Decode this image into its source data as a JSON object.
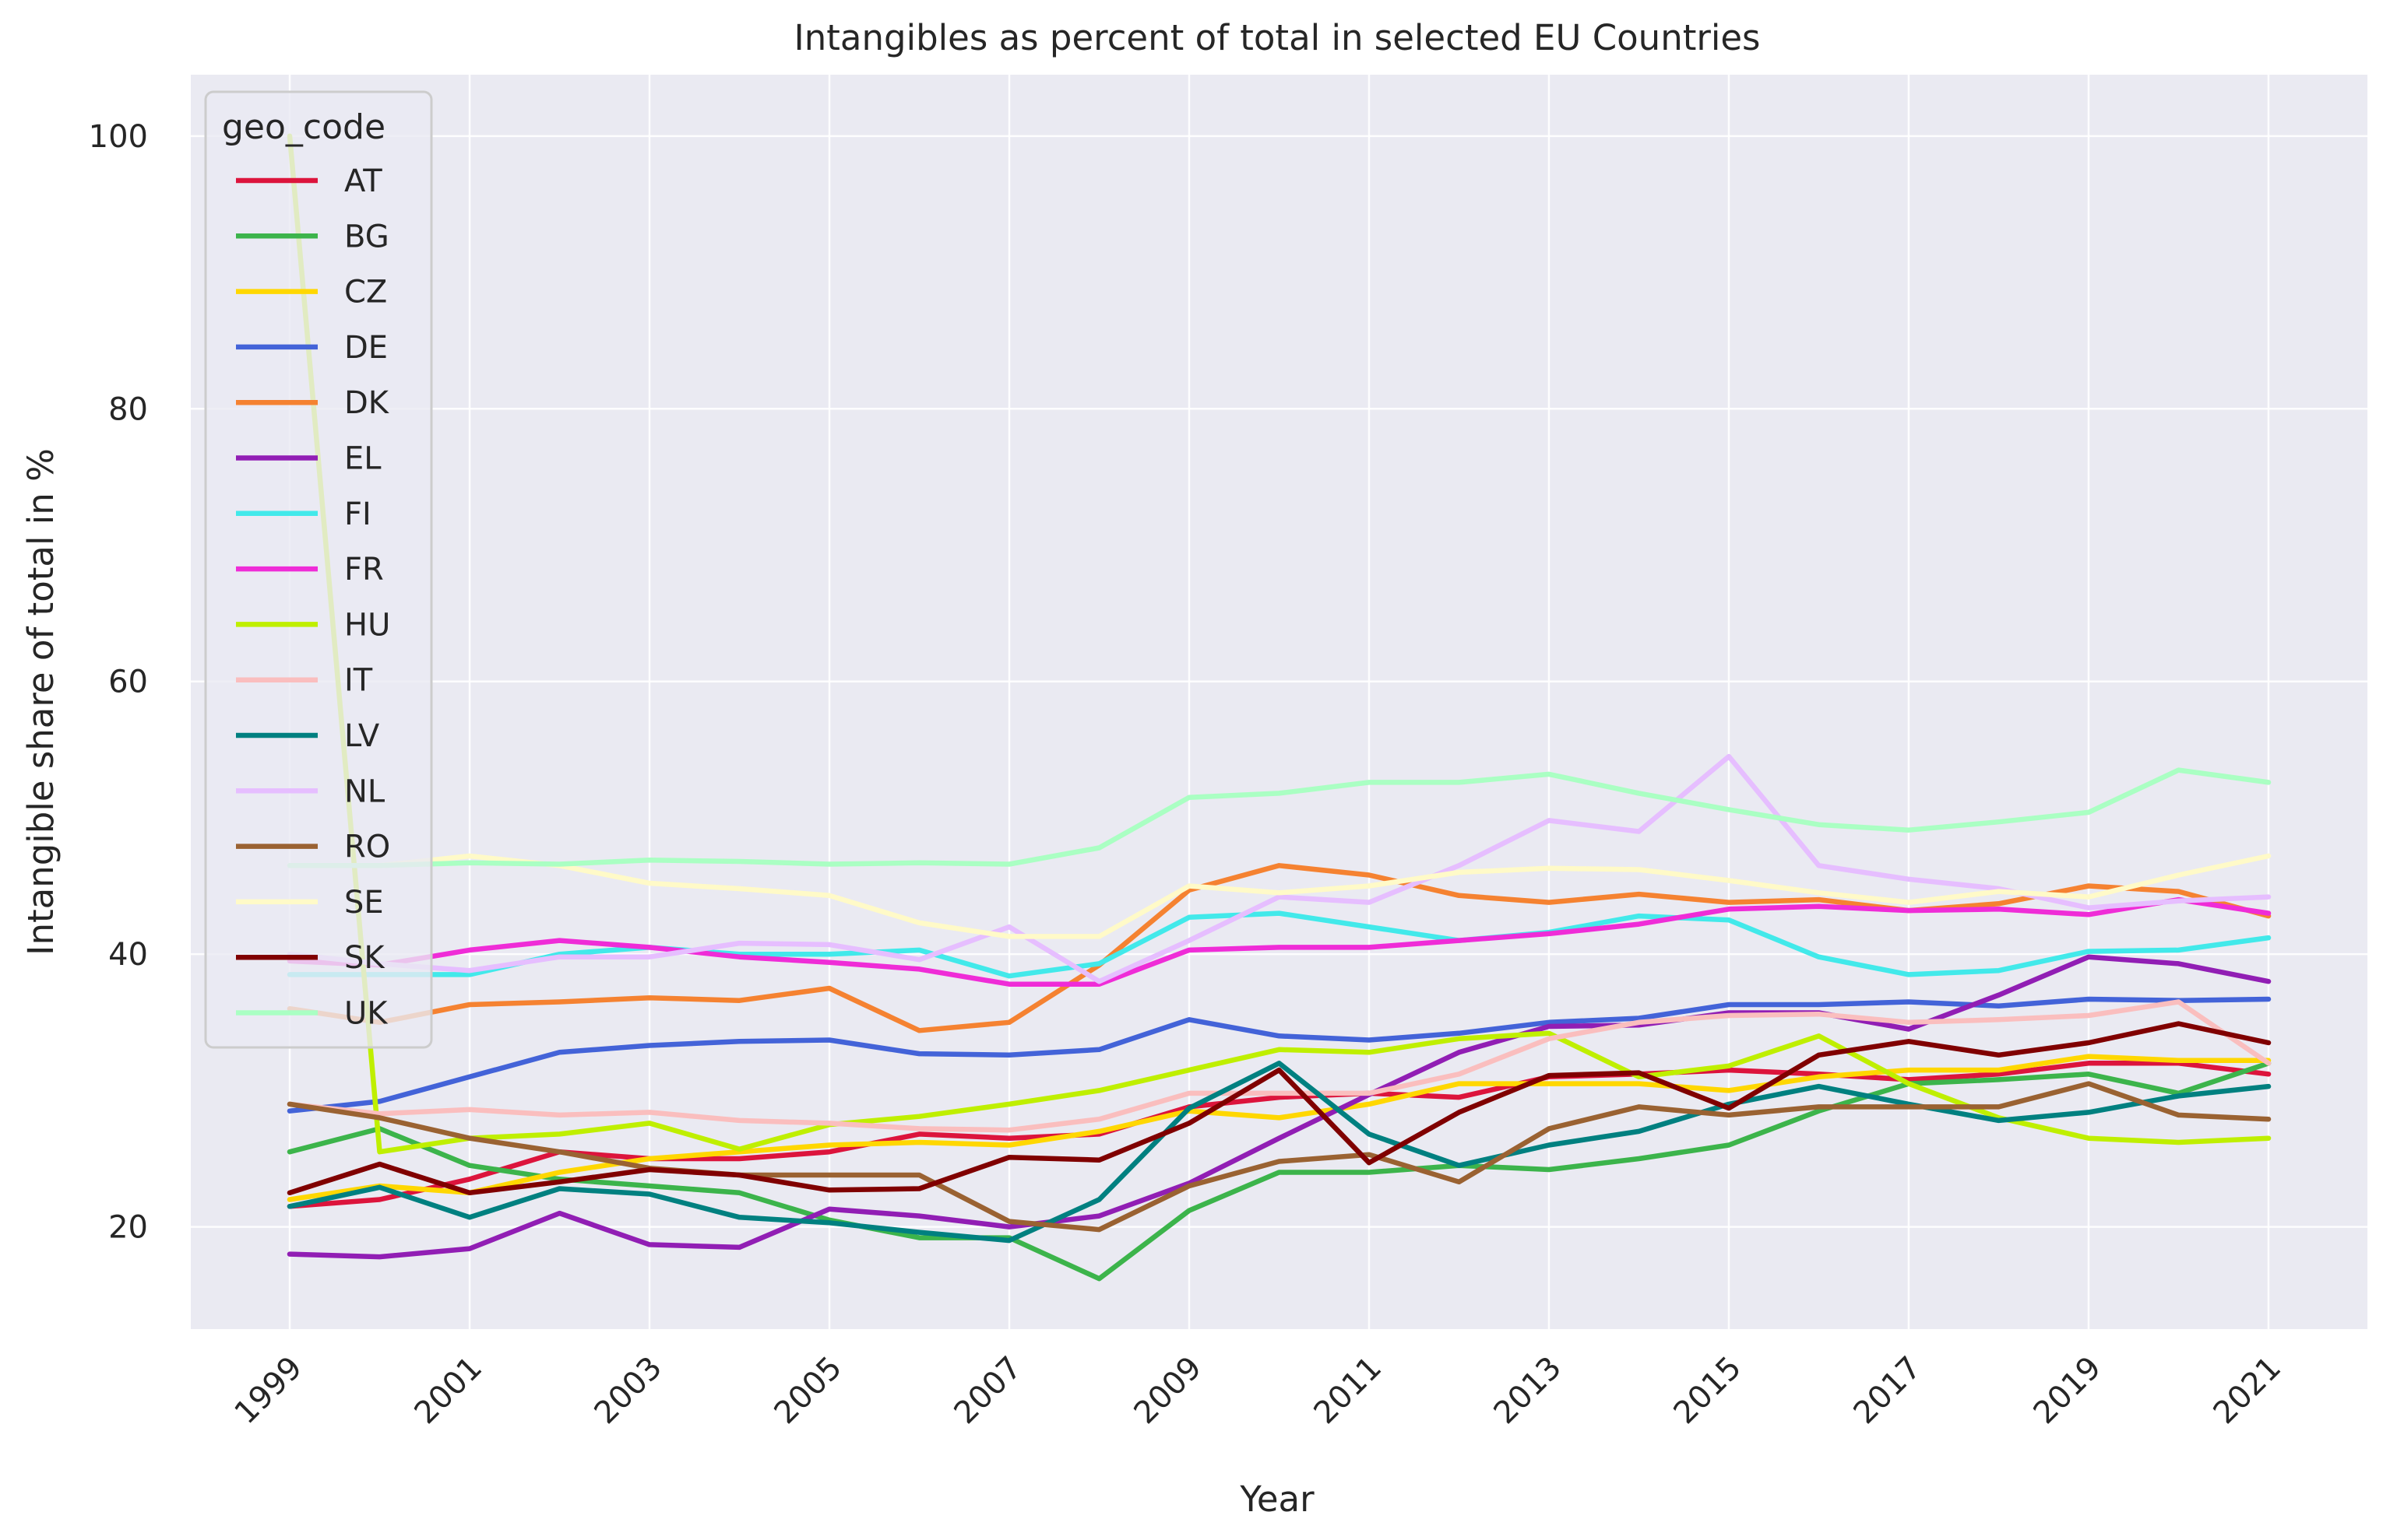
{
  "chart_data": {
    "type": "line",
    "title": "Intangibles as percent of total in selected EU Countries",
    "xlabel": "Year",
    "ylabel": "Intangible share of total in %",
    "x": [
      1999,
      2000,
      2001,
      2002,
      2003,
      2004,
      2005,
      2006,
      2007,
      2008,
      2009,
      2010,
      2011,
      2012,
      2013,
      2014,
      2015,
      2016,
      2017,
      2018,
      2019,
      2020,
      2021
    ],
    "xlim": [
      1997.9,
      2022.1
    ],
    "ylim": [
      12.5,
      104.5
    ],
    "xticks": [
      "1999",
      "2001",
      "2003",
      "2005",
      "2007",
      "2009",
      "2011",
      "2013",
      "2015",
      "2017",
      "2019",
      "2021"
    ],
    "yticks": [
      "20",
      "40",
      "60",
      "80",
      "100"
    ],
    "grid": true,
    "legend": {
      "title": "geo_code",
      "position": "top-left"
    },
    "series": [
      {
        "name": "AT",
        "color": "#dc143c",
        "values": [
          21.5,
          22.0,
          23.5,
          25.5,
          25.0,
          25.0,
          25.5,
          26.8,
          26.5,
          26.8,
          28.8,
          29.5,
          29.8,
          29.5,
          31.0,
          31.2,
          31.5,
          31.2,
          30.8,
          31.2,
          32.0,
          32.0,
          31.2
        ]
      },
      {
        "name": "BG",
        "color": "#3cb44b",
        "values": [
          25.5,
          27.2,
          24.5,
          23.5,
          23.0,
          22.5,
          20.5,
          19.2,
          19.2,
          16.2,
          21.2,
          24.0,
          24.0,
          24.5,
          24.2,
          25.0,
          26.0,
          28.5,
          30.5,
          30.8,
          31.2,
          29.8,
          32.0
        ]
      },
      {
        "name": "CZ",
        "color": "#ffd700",
        "values": [
          22.0,
          23.0,
          22.5,
          24.0,
          25.0,
          25.5,
          26.0,
          26.2,
          26.0,
          27.0,
          28.5,
          28.0,
          29.0,
          30.5,
          30.5,
          30.5,
          30.0,
          31.0,
          31.5,
          31.5,
          32.5,
          32.2,
          32.2
        ]
      },
      {
        "name": "DE",
        "color": "#4363d8",
        "values": [
          28.5,
          29.2,
          31.0,
          32.8,
          33.3,
          33.6,
          33.7,
          32.7,
          32.6,
          33.0,
          35.2,
          34.0,
          33.7,
          34.2,
          35.0,
          35.3,
          36.3,
          36.3,
          36.5,
          36.2,
          36.7,
          36.6,
          36.7
        ]
      },
      {
        "name": "DK",
        "color": "#f58231",
        "values": [
          36.0,
          35.0,
          36.3,
          36.5,
          36.8,
          36.6,
          37.5,
          34.4,
          35.0,
          39.2,
          44.7,
          46.5,
          45.8,
          44.3,
          43.8,
          44.4,
          43.8,
          44.0,
          43.2,
          43.7,
          45.0,
          44.6,
          42.8
        ]
      },
      {
        "name": "EL",
        "color": "#911eb4",
        "values": [
          18.0,
          17.8,
          18.4,
          21.0,
          18.7,
          18.5,
          21.3,
          20.8,
          20.0,
          20.8,
          23.2,
          26.5,
          29.7,
          32.8,
          34.7,
          34.8,
          35.7,
          35.7,
          34.5,
          37.0,
          39.8,
          39.3,
          38.0
        ]
      },
      {
        "name": "FI",
        "color": "#42e9ea",
        "values": [
          38.5,
          38.5,
          38.5,
          40.0,
          40.5,
          40.0,
          40.0,
          40.3,
          38.4,
          39.3,
          42.7,
          43.0,
          42.0,
          41.0,
          41.6,
          42.8,
          42.5,
          39.8,
          38.5,
          38.8,
          40.2,
          40.3,
          41.2
        ]
      },
      {
        "name": "FR",
        "color": "#ef2cd7",
        "values": [
          39.5,
          39.2,
          40.3,
          41.0,
          40.5,
          39.8,
          39.4,
          38.9,
          37.8,
          37.8,
          40.3,
          40.5,
          40.5,
          41.0,
          41.5,
          42.2,
          43.3,
          43.5,
          43.2,
          43.3,
          42.9,
          44.0,
          43.0
        ]
      },
      {
        "name": "HU",
        "color": "#bfef00",
        "values": [
          100.0,
          25.5,
          26.5,
          26.8,
          27.6,
          25.7,
          27.5,
          28.1,
          29.0,
          30.0,
          31.5,
          33.0,
          32.8,
          33.8,
          34.2,
          31.0,
          31.8,
          34.0,
          30.5,
          28.0,
          26.5,
          26.2,
          26.5
        ]
      },
      {
        "name": "IT",
        "color": "#fabebe",
        "values": [
          29.0,
          28.3,
          28.6,
          28.2,
          28.4,
          27.8,
          27.6,
          27.2,
          27.1,
          27.9,
          29.8,
          29.8,
          29.8,
          31.2,
          33.8,
          35.0,
          35.5,
          35.6,
          35.0,
          35.2,
          35.5,
          36.5,
          32.0
        ]
      },
      {
        "name": "LV",
        "color": "#008080",
        "values": [
          21.5,
          22.9,
          20.7,
          22.8,
          22.4,
          20.7,
          20.3,
          19.6,
          19.0,
          22.0,
          28.7,
          32.0,
          26.8,
          24.5,
          26.0,
          27.0,
          29.0,
          30.3,
          29.0,
          27.8,
          28.4,
          29.6,
          30.3
        ]
      },
      {
        "name": "NL",
        "color": "#e6beff",
        "values": [
          40.0,
          39.3,
          38.8,
          39.8,
          39.8,
          40.8,
          40.7,
          39.6,
          42.0,
          38.0,
          41.0,
          44.2,
          43.8,
          46.5,
          49.8,
          49.0,
          54.5,
          46.5,
          45.5,
          44.8,
          43.4,
          43.9,
          44.2
        ]
      },
      {
        "name": "RO",
        "color": "#9a6232",
        "values": [
          29.0,
          28.0,
          26.5,
          25.5,
          24.3,
          23.8,
          23.8,
          23.8,
          20.4,
          19.8,
          23.0,
          24.8,
          25.3,
          23.3,
          27.2,
          28.8,
          28.2,
          28.8,
          28.8,
          28.8,
          30.5,
          28.2,
          27.9
        ]
      },
      {
        "name": "SE",
        "color": "#fffac8",
        "values": [
          46.5,
          46.5,
          47.2,
          46.5,
          45.2,
          44.8,
          44.3,
          42.3,
          41.3,
          41.3,
          45.0,
          44.5,
          45.0,
          46.0,
          46.3,
          46.2,
          45.4,
          44.5,
          43.8,
          44.6,
          44.2,
          45.8,
          47.2
        ]
      },
      {
        "name": "SK",
        "color": "#800000",
        "values": [
          22.5,
          24.6,
          22.5,
          23.3,
          24.2,
          23.8,
          22.7,
          22.8,
          25.1,
          24.9,
          27.6,
          31.5,
          24.7,
          28.4,
          31.1,
          31.3,
          28.7,
          32.6,
          33.6,
          32.6,
          33.5,
          34.9,
          33.5
        ]
      },
      {
        "name": "UK",
        "color": "#aaffc3",
        "values": [
          46.5,
          46.5,
          46.7,
          46.6,
          46.9,
          46.8,
          46.6,
          46.7,
          46.6,
          47.8,
          51.5,
          51.8,
          52.6,
          52.6,
          53.2,
          51.8,
          50.6,
          49.5,
          49.1,
          49.7,
          50.4,
          53.5,
          52.6
        ]
      }
    ]
  }
}
